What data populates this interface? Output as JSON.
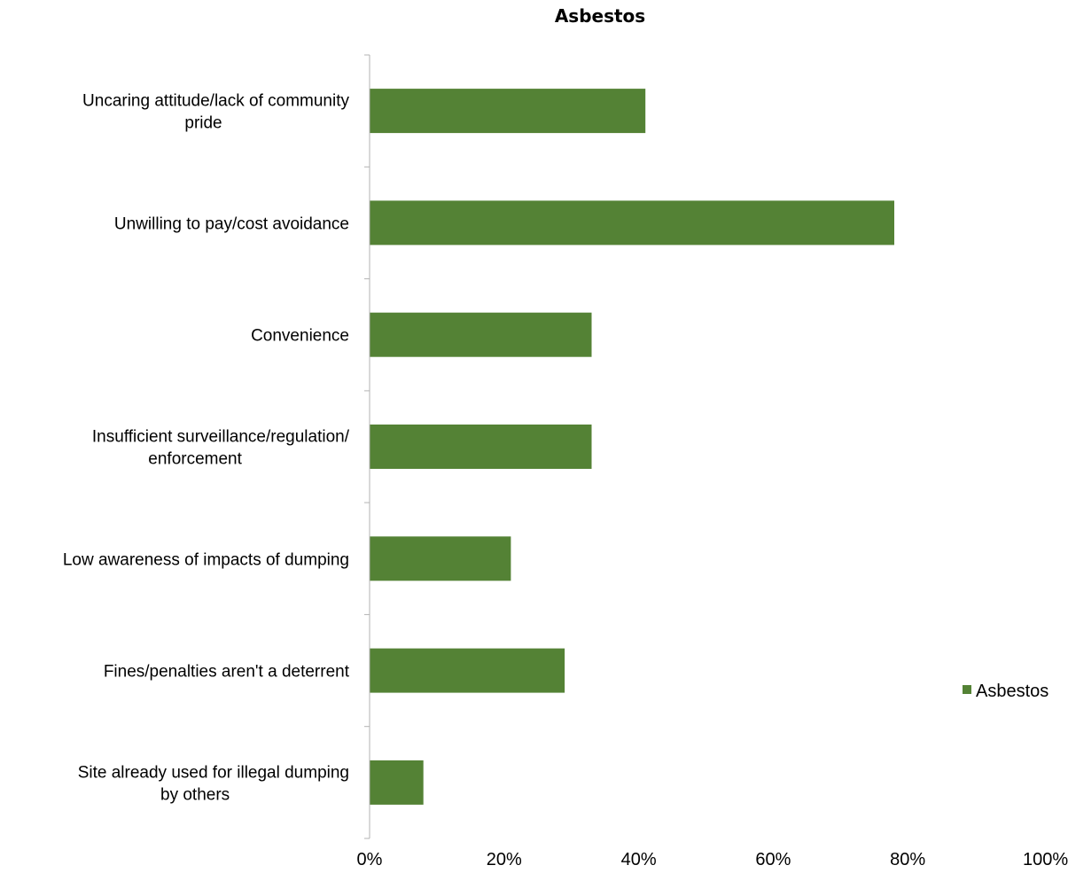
{
  "chart_data": {
    "type": "bar",
    "orientation": "horizontal",
    "title": "Asbestos",
    "xlabel": "",
    "ylabel": "",
    "xlim": [
      0,
      100
    ],
    "value_unit": "%",
    "grid": false,
    "legend_position": "right",
    "categories": [
      "Uncaring attitude/lack of community pride",
      "Unwilling to pay/cost avoidance",
      "Convenience",
      "Insufficient surveillance/regulation/ enforcement",
      "Low awareness of impacts of dumping",
      "Fines/penalties aren't a deterrent",
      "Site already used for illegal dumping by others"
    ],
    "category_lines": [
      [
        "Uncaring attitude/lack of community",
        "pride"
      ],
      [
        "Unwilling to pay/cost avoidance"
      ],
      [
        "Convenience"
      ],
      [
        "Insufficient surveillance/regulation/",
        "enforcement"
      ],
      [
        "Low awareness of impacts of dumping"
      ],
      [
        "Fines/penalties aren't a deterrent"
      ],
      [
        "Site already used for illegal dumping",
        "by others"
      ]
    ],
    "series": [
      {
        "name": "Asbestos",
        "color": "#548235",
        "values": [
          41,
          78,
          33,
          33,
          21,
          29,
          8
        ]
      }
    ],
    "x_ticks": [
      "0%",
      "20%",
      "40%",
      "60%",
      "80%",
      "100%"
    ],
    "x_tick_values": [
      0,
      20,
      40,
      60,
      80,
      100
    ]
  }
}
